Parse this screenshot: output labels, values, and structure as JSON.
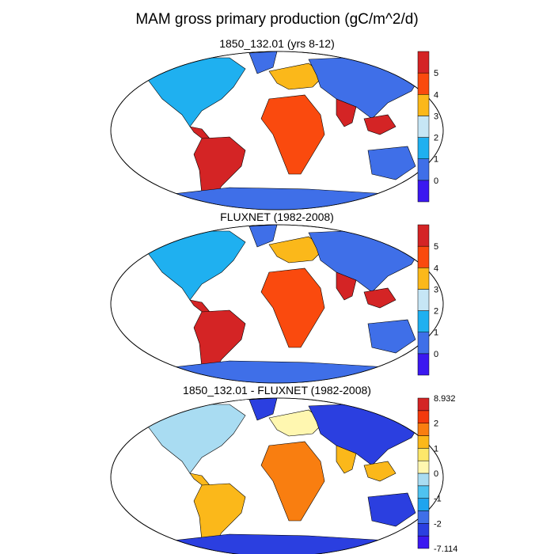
{
  "title": "MAM gross primary production (gC/m^2/d)",
  "panels": [
    {
      "subtitle": "1850_132.01 (yrs 8-12)",
      "colorbar": {
        "colors": [
          "#3b18f0",
          "#3f6fe8",
          "#1fb0f0",
          "#c6e6f5",
          "#fbb81a",
          "#fa4a0e",
          "#d42425"
        ],
        "labels": [
          "0",
          "1",
          "2",
          "3",
          "4",
          "5"
        ]
      },
      "land_palette": {
        "low": "#3f6fe8",
        "mid": "#1fb0f0",
        "high": "#d42425",
        "warm": "#fa4a0e",
        "mid2": "#fbb81a"
      }
    },
    {
      "subtitle": "FLUXNET (1982-2008)",
      "colorbar": {
        "colors": [
          "#3b18f0",
          "#3f6fe8",
          "#1fb0f0",
          "#c6e6f5",
          "#fbb81a",
          "#fa4a0e",
          "#d42425"
        ],
        "labels": [
          "0",
          "1",
          "2",
          "3",
          "4",
          "5"
        ]
      },
      "land_palette": {
        "low": "#3f6fe8",
        "mid": "#1fb0f0",
        "high": "#d42425",
        "warm": "#fa4a0e",
        "mid2": "#fbb81a"
      }
    },
    {
      "subtitle": "1850_132.01 - FLUXNET (1982-2008)",
      "colorbar": {
        "colors": [
          "#3b18f0",
          "#2b3fe0",
          "#3f6fe8",
          "#1fa4ee",
          "#4fc3f0",
          "#a9dcf2",
          "#fff7b0",
          "#fde76a",
          "#fbb81a",
          "#f97e10",
          "#f33a0c",
          "#d42425"
        ],
        "labels": [
          "8.932",
          "2",
          "1",
          "0",
          "-1",
          "-2",
          "-7.114"
        ]
      },
      "land_palette": {
        "low": "#2b3fe0",
        "mid": "#a9dcf2",
        "high": "#fbb81a",
        "warm": "#f97e10",
        "mid2": "#fff7b0"
      }
    }
  ]
}
